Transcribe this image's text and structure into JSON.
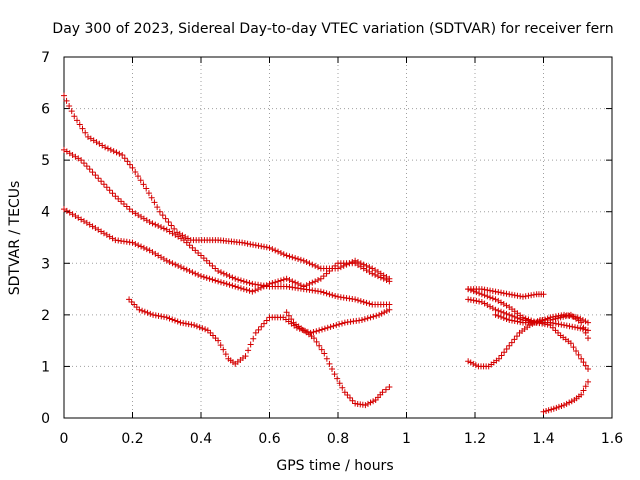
{
  "chart_data": {
    "type": "scatter",
    "title": "Day 300 of 2023, Sidereal Day-to-day VTEC variation (SDTVAR) for receiver fern",
    "xlabel": "GPS time / hours",
    "ylabel": "SDTVAR / TECUs",
    "xlim": [
      0,
      1.6
    ],
    "ylim": [
      0,
      7
    ],
    "xticks": [
      "0",
      "0.2",
      "0.4",
      "0.6",
      "0.8",
      "1",
      "1.2",
      "1.4",
      "1.6"
    ],
    "yticks": [
      "0",
      "1",
      "2",
      "3",
      "4",
      "5",
      "6",
      "7"
    ],
    "grid": true,
    "marker": "+",
    "color": "#d40000",
    "series": [
      {
        "name": "track-1",
        "points": [
          [
            0,
            6.25
          ],
          [
            0.03,
            5.85
          ],
          [
            0.07,
            5.45
          ],
          [
            0.12,
            5.25
          ],
          [
            0.17,
            5.1
          ],
          [
            0.2,
            4.85
          ],
          [
            0.24,
            4.45
          ],
          [
            0.28,
            4.0
          ],
          [
            0.33,
            3.6
          ],
          [
            0.37,
            3.45
          ],
          [
            0.45,
            3.45
          ],
          [
            0.52,
            3.4
          ],
          [
            0.6,
            3.3
          ],
          [
            0.65,
            3.15
          ],
          [
            0.7,
            3.05
          ],
          [
            0.75,
            2.9
          ],
          [
            0.8,
            2.9
          ],
          [
            0.85,
            3.05
          ],
          [
            0.9,
            2.9
          ],
          [
            0.95,
            2.7
          ]
        ]
      },
      {
        "name": "track-2",
        "points": [
          [
            0,
            5.2
          ],
          [
            0.05,
            5.0
          ],
          [
            0.1,
            4.65
          ],
          [
            0.15,
            4.3
          ],
          [
            0.2,
            4.0
          ],
          [
            0.25,
            3.8
          ],
          [
            0.3,
            3.65
          ],
          [
            0.35,
            3.45
          ],
          [
            0.4,
            3.15
          ],
          [
            0.45,
            2.85
          ],
          [
            0.5,
            2.7
          ],
          [
            0.55,
            2.6
          ],
          [
            0.6,
            2.55
          ],
          [
            0.65,
            2.55
          ],
          [
            0.7,
            2.5
          ],
          [
            0.75,
            2.45
          ],
          [
            0.8,
            2.35
          ],
          [
            0.85,
            2.3
          ],
          [
            0.9,
            2.2
          ],
          [
            0.95,
            2.2
          ]
        ]
      },
      {
        "name": "track-3",
        "points": [
          [
            0,
            4.05
          ],
          [
            0.05,
            3.85
          ],
          [
            0.1,
            3.65
          ],
          [
            0.15,
            3.45
          ],
          [
            0.2,
            3.4
          ],
          [
            0.25,
            3.25
          ],
          [
            0.3,
            3.05
          ],
          [
            0.35,
            2.9
          ],
          [
            0.4,
            2.75
          ],
          [
            0.45,
            2.65
          ],
          [
            0.5,
            2.55
          ],
          [
            0.55,
            2.45
          ],
          [
            0.6,
            2.6
          ],
          [
            0.65,
            2.7
          ],
          [
            0.7,
            2.55
          ],
          [
            0.75,
            2.7
          ],
          [
            0.8,
            3.0
          ],
          [
            0.85,
            3.0
          ],
          [
            0.9,
            2.8
          ],
          [
            0.95,
            2.65
          ]
        ]
      },
      {
        "name": "track-4",
        "points": [
          [
            0.19,
            2.3
          ],
          [
            0.22,
            2.1
          ],
          [
            0.26,
            2.0
          ],
          [
            0.3,
            1.95
          ],
          [
            0.34,
            1.85
          ],
          [
            0.38,
            1.8
          ],
          [
            0.42,
            1.7
          ],
          [
            0.45,
            1.5
          ],
          [
            0.48,
            1.15
          ],
          [
            0.5,
            1.05
          ],
          [
            0.53,
            1.2
          ],
          [
            0.56,
            1.65
          ],
          [
            0.6,
            1.95
          ],
          [
            0.64,
            1.95
          ],
          [
            0.68,
            1.75
          ],
          [
            0.72,
            1.65
          ],
          [
            0.77,
            1.75
          ],
          [
            0.82,
            1.85
          ],
          [
            0.87,
            1.9
          ],
          [
            0.92,
            2.0
          ],
          [
            0.95,
            2.1
          ]
        ]
      },
      {
        "name": "track-5",
        "points": [
          [
            0.65,
            2.05
          ],
          [
            0.67,
            1.85
          ],
          [
            0.7,
            1.7
          ],
          [
            0.73,
            1.55
          ],
          [
            0.76,
            1.25
          ],
          [
            0.79,
            0.85
          ],
          [
            0.82,
            0.5
          ],
          [
            0.85,
            0.28
          ],
          [
            0.88,
            0.25
          ],
          [
            0.91,
            0.35
          ],
          [
            0.93,
            0.5
          ],
          [
            0.95,
            0.6
          ]
        ]
      },
      {
        "name": "track-6",
        "points": [
          [
            1.18,
            2.5
          ],
          [
            1.22,
            2.5
          ],
          [
            1.26,
            2.45
          ],
          [
            1.3,
            2.4
          ],
          [
            1.34,
            2.35
          ],
          [
            1.38,
            2.4
          ],
          [
            1.4,
            2.4
          ]
        ]
      },
      {
        "name": "track-7",
        "points": [
          [
            1.18,
            2.3
          ],
          [
            1.22,
            2.25
          ],
          [
            1.26,
            2.1
          ],
          [
            1.3,
            2.0
          ],
          [
            1.34,
            1.9
          ],
          [
            1.38,
            1.85
          ],
          [
            1.42,
            1.85
          ],
          [
            1.46,
            1.8
          ],
          [
            1.5,
            1.75
          ],
          [
            1.53,
            1.7
          ]
        ]
      },
      {
        "name": "track-8",
        "points": [
          [
            1.18,
            1.1
          ],
          [
            1.21,
            1.0
          ],
          [
            1.24,
            1.0
          ],
          [
            1.27,
            1.15
          ],
          [
            1.3,
            1.4
          ],
          [
            1.33,
            1.65
          ],
          [
            1.36,
            1.8
          ],
          [
            1.39,
            1.9
          ],
          [
            1.42,
            1.9
          ],
          [
            1.45,
            1.95
          ],
          [
            1.48,
            2.0
          ],
          [
            1.51,
            1.85
          ],
          [
            1.53,
            1.55
          ]
        ]
      },
      {
        "name": "track-9",
        "points": [
          [
            1.18,
            2.5
          ],
          [
            1.22,
            2.4
          ],
          [
            1.26,
            2.3
          ],
          [
            1.3,
            2.15
          ],
          [
            1.34,
            1.95
          ],
          [
            1.38,
            1.85
          ],
          [
            1.42,
            1.8
          ],
          [
            1.45,
            1.6
          ],
          [
            1.48,
            1.45
          ],
          [
            1.51,
            1.15
          ],
          [
            1.53,
            0.95
          ]
        ]
      },
      {
        "name": "track-10",
        "points": [
          [
            1.26,
            2.0
          ],
          [
            1.3,
            1.9
          ],
          [
            1.34,
            1.85
          ],
          [
            1.38,
            1.85
          ],
          [
            1.42,
            1.95
          ],
          [
            1.46,
            2.0
          ],
          [
            1.5,
            1.95
          ],
          [
            1.53,
            1.85
          ]
        ]
      },
      {
        "name": "track-11",
        "points": [
          [
            1.4,
            0.12
          ],
          [
            1.43,
            0.18
          ],
          [
            1.46,
            0.25
          ],
          [
            1.49,
            0.35
          ],
          [
            1.51,
            0.45
          ],
          [
            1.53,
            0.7
          ]
        ]
      }
    ]
  }
}
